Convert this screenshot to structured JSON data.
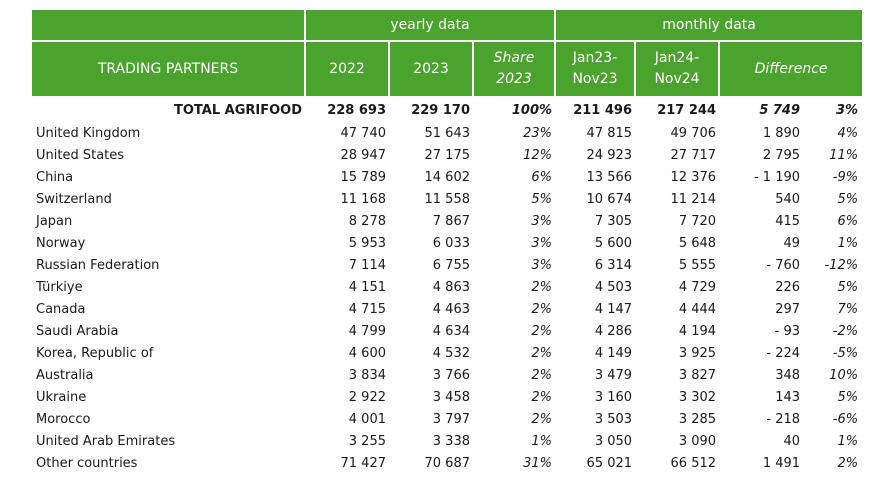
{
  "header": {
    "group_yearly": "yearly data",
    "group_monthly": "monthly data",
    "col_partner": "TRADING PARTNERS",
    "col_2022": "2022",
    "col_2023": "2023",
    "col_share_1": "Share",
    "col_share_2": "2023",
    "col_jan23_1": "Jan23-",
    "col_jan23_2": "Nov23",
    "col_jan24_1": "Jan24-",
    "col_jan24_2": "Nov24",
    "col_difference": "Difference"
  },
  "total": {
    "label": "TOTAL AGRIFOOD",
    "y2022": "228 693",
    "y2023": "229 170",
    "share": "100%",
    "m23": "211 496",
    "m24": "217 244",
    "diff": "5 749",
    "pct": "3%"
  },
  "rows": [
    {
      "name": "United Kingdom",
      "y2022": "47 740",
      "y2023": "51 643",
      "share": "23%",
      "m23": "47 815",
      "m24": "49 706",
      "diff": "1 890",
      "pct": "4%"
    },
    {
      "name": "United States",
      "y2022": "28 947",
      "y2023": "27 175",
      "share": "12%",
      "m23": "24 923",
      "m24": "27 717",
      "diff": "2 795",
      "pct": "11%"
    },
    {
      "name": "China",
      "y2022": "15 789",
      "y2023": "14 602",
      "share": "6%",
      "m23": "13 566",
      "m24": "12 376",
      "diff": "- 1 190",
      "pct": "-9%"
    },
    {
      "name": "Switzerland",
      "y2022": "11 168",
      "y2023": "11 558",
      "share": "5%",
      "m23": "10 674",
      "m24": "11 214",
      "diff": "540",
      "pct": "5%"
    },
    {
      "name": "Japan",
      "y2022": "8 278",
      "y2023": "7 867",
      "share": "3%",
      "m23": "7 305",
      "m24": "7 720",
      "diff": "415",
      "pct": "6%"
    },
    {
      "name": "Norway",
      "y2022": "5 953",
      "y2023": "6 033",
      "share": "3%",
      "m23": "5 600",
      "m24": "5 648",
      "diff": "49",
      "pct": "1%"
    },
    {
      "name": "Russian Federation",
      "y2022": "7 114",
      "y2023": "6 755",
      "share": "3%",
      "m23": "6 314",
      "m24": "5 555",
      "diff": "- 760",
      "pct": "-12%"
    },
    {
      "name": "Türkiye",
      "y2022": "4 151",
      "y2023": "4 863",
      "share": "2%",
      "m23": "4 503",
      "m24": "4 729",
      "diff": "226",
      "pct": "5%"
    },
    {
      "name": "Canada",
      "y2022": "4 715",
      "y2023": "4 463",
      "share": "2%",
      "m23": "4 147",
      "m24": "4 444",
      "diff": "297",
      "pct": "7%"
    },
    {
      "name": "Saudi Arabia",
      "y2022": "4 799",
      "y2023": "4 634",
      "share": "2%",
      "m23": "4 286",
      "m24": "4 194",
      "diff": "- 93",
      "pct": "-2%"
    },
    {
      "name": "Korea,  Republic of",
      "y2022": "4 600",
      "y2023": "4 532",
      "share": "2%",
      "m23": "4 149",
      "m24": "3 925",
      "diff": "- 224",
      "pct": "-5%"
    },
    {
      "name": "Australia",
      "y2022": "3 834",
      "y2023": "3 766",
      "share": "2%",
      "m23": "3 479",
      "m24": "3 827",
      "diff": "348",
      "pct": "10%"
    },
    {
      "name": "Ukraine",
      "y2022": "2 922",
      "y2023": "3 458",
      "share": "2%",
      "m23": "3 160",
      "m24": "3 302",
      "diff": "143",
      "pct": "5%"
    },
    {
      "name": "Morocco",
      "y2022": "4 001",
      "y2023": "3 797",
      "share": "2%",
      "m23": "3 503",
      "m24": "3 285",
      "diff": "- 218",
      "pct": "-6%"
    },
    {
      "name": "United Arab Emirates",
      "y2022": "3 255",
      "y2023": "3 338",
      "share": "1%",
      "m23": "3 050",
      "m24": "3 090",
      "diff": "40",
      "pct": "1%"
    },
    {
      "name": "Other countries",
      "y2022": "71 427",
      "y2023": "70 687",
      "share": "31%",
      "m23": "65 021",
      "m24": "66 512",
      "diff": "1 491",
      "pct": "2%"
    }
  ],
  "colors": {
    "header_green": "#4aa32c",
    "header_text": "#ffffff"
  }
}
